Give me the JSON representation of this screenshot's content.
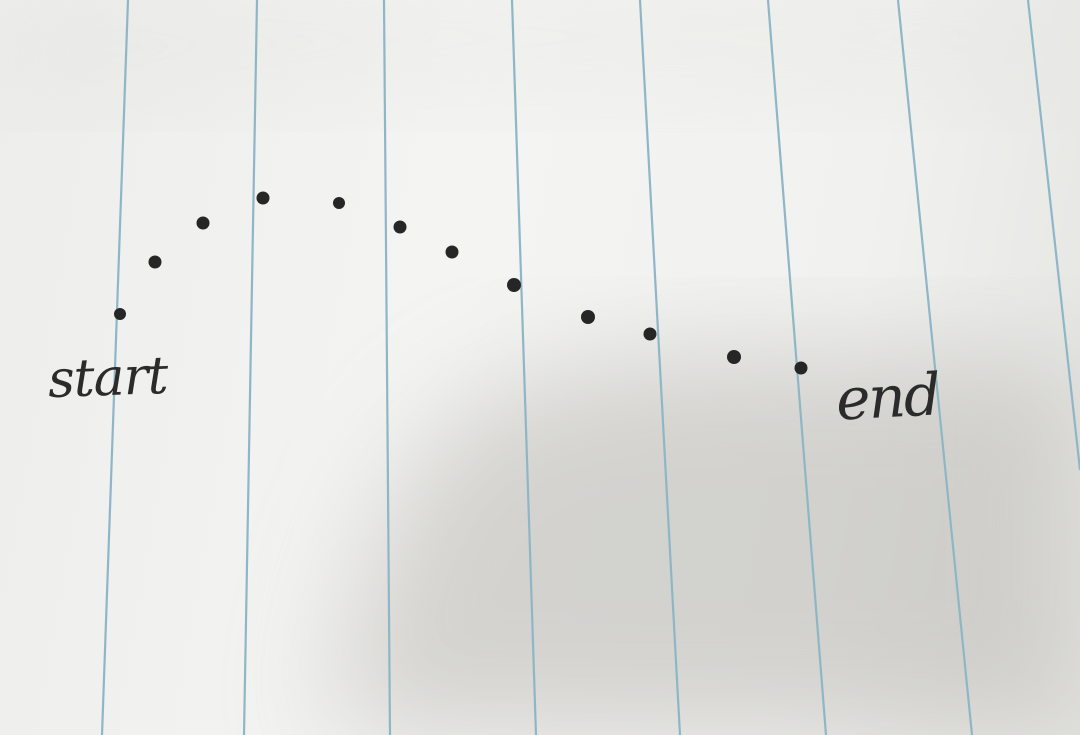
{
  "scene": {
    "paper_color": "#f2f2f0",
    "rule_line_color": "#8fb6c6",
    "ink_color": "#262626"
  },
  "labels": {
    "start": "start",
    "end": "end"
  }
}
